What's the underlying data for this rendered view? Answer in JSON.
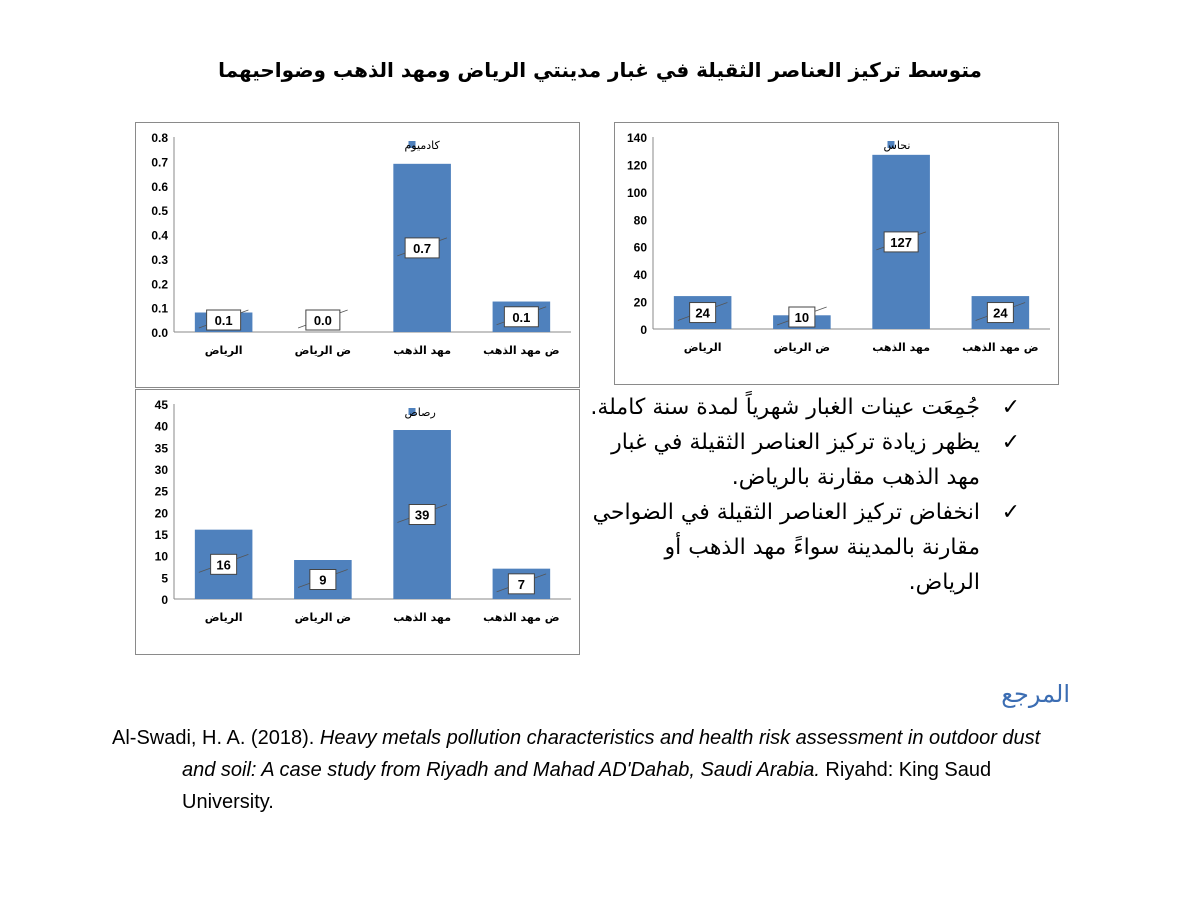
{
  "title": "متوسط تركيز العناصر الثقيلة في غبار مدينتي الرياض ومهد الذهب وضواحيهما",
  "chart_data": [
    {
      "id": "cadmium",
      "type": "bar",
      "categories": [
        "الرياض",
        "ض الرياض",
        "مهد الذهب",
        "ض مهد الذهب"
      ],
      "series": [
        {
          "name": "كادميوم",
          "values": [
            0.08,
            0.0,
            0.69,
            0.125
          ],
          "labels": [
            "0.1",
            "0.0",
            "0.7",
            "0.1"
          ]
        }
      ],
      "ylim": [
        0,
        0.8
      ],
      "yticks": [
        "0.0",
        "0.1",
        "0.2",
        "0.3",
        "0.4",
        "0.5",
        "0.6",
        "0.7",
        "0.8"
      ],
      "color": "#4f81bd",
      "legend": "top"
    },
    {
      "id": "copper",
      "type": "bar",
      "categories": [
        "الرياض",
        "ض الرياض",
        "مهد الذهب",
        "ض مهد الذهب"
      ],
      "series": [
        {
          "name": "نحاس",
          "values": [
            24,
            10,
            127,
            24
          ],
          "labels": [
            "24",
            "10",
            "127",
            "24"
          ]
        }
      ],
      "ylim": [
        0,
        140
      ],
      "yticks": [
        "0",
        "20",
        "40",
        "60",
        "80",
        "100",
        "120",
        "140"
      ],
      "color": "#4f81bd",
      "legend": "top"
    },
    {
      "id": "lead",
      "type": "bar",
      "categories": [
        "الرياض",
        "ض الرياض",
        "مهد الذهب",
        "ض مهد الذهب"
      ],
      "series": [
        {
          "name": "رصاص",
          "values": [
            16,
            9,
            39,
            7
          ],
          "labels": [
            "16",
            "9",
            "39",
            "7"
          ]
        }
      ],
      "ylim": [
        0,
        45
      ],
      "yticks": [
        "0",
        "5",
        "10",
        "15",
        "20",
        "25",
        "30",
        "35",
        "40",
        "45"
      ],
      "color": "#4f81bd",
      "legend": "top"
    }
  ],
  "bullets": [
    "جُمِعَت عينات الغبار شهرياً لمدة سنة كاملة.",
    "يظهر زيادة تركيز العناصر الثقيلة في غبار مهد الذهب مقارنة بالرياض.",
    "انخفاض تركيز العناصر الثقيلة في الضواحي مقارنة بالمدينة سواءً مهد الذهب أو الرياض."
  ],
  "check_glyph": "✓",
  "reference": {
    "heading": "المرجع",
    "authors": "Al-Swadi, H. A. (2018). ",
    "title": "Heavy metals pollution characteristics and health risk assessment in outdoor dust and soil: A case study from Riyadh and Mahad AD'Dahab, Saudi Arabia.",
    "publisher": " Riyahd: King Saud University."
  }
}
